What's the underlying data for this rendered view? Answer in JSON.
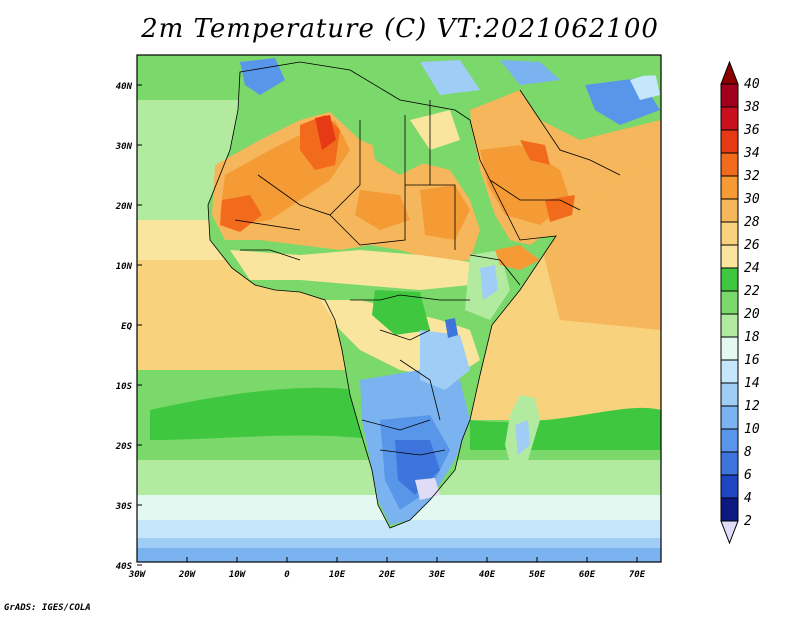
{
  "title": "2m Temperature (C) VT:2021062100",
  "credit": "GrADS: IGES/COLA",
  "map": {
    "lat_labels": [
      "40N",
      "30N",
      "20N",
      "10N",
      "EQ",
      "10S",
      "20S",
      "30S",
      "40S"
    ],
    "lon_labels": [
      "30W",
      "20W",
      "10W",
      "0",
      "10E",
      "20E",
      "30E",
      "40E",
      "50E",
      "60E",
      "70E"
    ]
  },
  "colorbar": {
    "labels": [
      "40",
      "38",
      "36",
      "34",
      "32",
      "30",
      "28",
      "26",
      "24",
      "22",
      "20",
      "18",
      "16",
      "14",
      "12",
      "10",
      "8",
      "6",
      "4",
      "2"
    ],
    "colors": [
      "#a0001c",
      "#c8101e",
      "#e63a14",
      "#f26b1d",
      "#f59b36",
      "#f6b65b",
      "#f8d27c",
      "#fae59e",
      "#3fc83f",
      "#7bd86b",
      "#b2eaa0",
      "#e3f8f0",
      "#c6e6fb",
      "#9fcdf6",
      "#7bb3f0",
      "#5896ea",
      "#3d75dd",
      "#1f45c2",
      "#0c1a80"
    ],
    "top_arrow_color": "#8a0000",
    "bottom_arrow_color": "#e0dcf8"
  }
}
